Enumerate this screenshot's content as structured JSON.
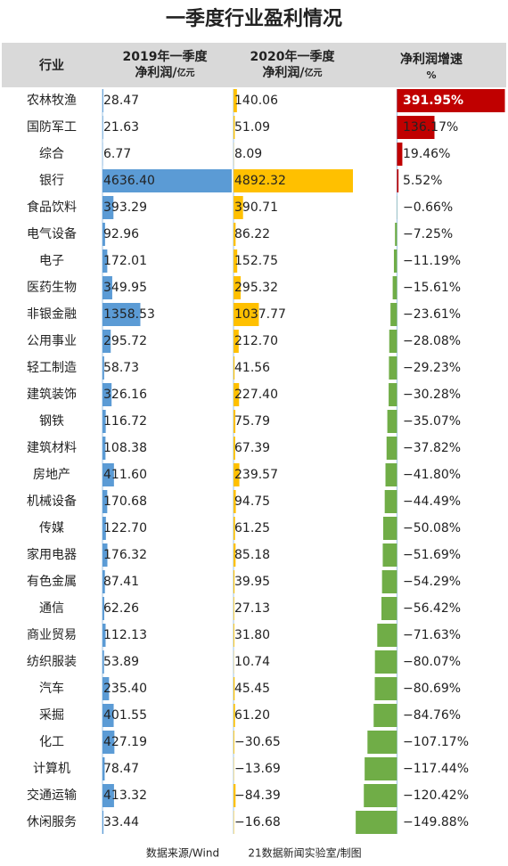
{
  "chart_data": {
    "type": "bar_table",
    "title": "一季度行业盈利情况",
    "category_header": "行业",
    "categories": [
      "农林牧渔",
      "国防军工",
      "综合",
      "银行",
      "食品饮料",
      "电气设备",
      "电子",
      "医药生物",
      "非银金融",
      "公用事业",
      "轻工制造",
      "建筑装饰",
      "钢铁",
      "建筑材料",
      "房地产",
      "机械设备",
      "传媒",
      "家用电器",
      "有色金属",
      "通信",
      "商业贸易",
      "纺织服装",
      "汽车",
      "采掘",
      "化工",
      "计算机",
      "交通运输",
      "休闲服务"
    ],
    "series": [
      {
        "name": [
          "2019年一季度",
          "净利润/",
          "亿元"
        ],
        "color": "#5b9bd5",
        "xlim": [
          0,
          4636.4
        ],
        "values": [
          28.47,
          21.63,
          6.77,
          4636.4,
          393.29,
          92.96,
          172.01,
          349.95,
          1358.53,
          295.72,
          58.73,
          326.16,
          116.72,
          108.38,
          411.6,
          170.68,
          122.7,
          176.32,
          87.41,
          62.26,
          112.13,
          53.89,
          235.4,
          401.55,
          427.19,
          78.47,
          413.32,
          33.44
        ],
        "value_labels": [
          "28.47",
          "21.63",
          "6.77",
          "4636.40",
          "393.29",
          "92.96",
          "172.01",
          "349.95",
          "1358.53",
          "295.72",
          "58.73",
          "326.16",
          "116.72",
          "108.38",
          "411.60",
          "170.68",
          "122.70",
          "176.32",
          "87.41",
          "62.26",
          "112.13",
          "53.89",
          "235.40",
          "401.55",
          "427.19",
          "78.47",
          "413.32",
          "33.44"
        ]
      },
      {
        "name": [
          "2020年一季度",
          "净利润/",
          "亿元"
        ],
        "color": "#ffc000",
        "xlim": [
          0,
          4892.32
        ],
        "values": [
          140.06,
          51.09,
          8.09,
          4892.32,
          390.71,
          86.22,
          152.75,
          295.32,
          1037.77,
          212.7,
          41.56,
          227.4,
          75.79,
          67.39,
          239.57,
          94.75,
          61.25,
          85.18,
          39.95,
          27.13,
          31.8,
          10.74,
          45.45,
          61.2,
          -30.65,
          -13.69,
          -84.39,
          -16.68
        ],
        "value_labels": [
          "140.06",
          "51.09",
          "8.09",
          "4892.32",
          "390.71",
          "86.22",
          "152.75",
          "295.32",
          "1037.77",
          "212.70",
          "41.56",
          "227.40",
          "75.79",
          "67.39",
          "239.57",
          "94.75",
          "61.25",
          "85.18",
          "39.95",
          "27.13",
          "31.80",
          "10.74",
          "45.45",
          "61.20",
          "−30.65",
          "−13.69",
          "−84.39",
          "−16.68"
        ]
      },
      {
        "name": [
          "净利润增速",
          "%"
        ],
        "color": "#c00000",
        "negative_color": "#70ad47",
        "xlim": [
          -160,
          400
        ],
        "values": [
          391.95,
          136.17,
          19.46,
          5.52,
          -0.66,
          -7.25,
          -11.19,
          -15.61,
          -23.61,
          -28.08,
          -29.23,
          -30.28,
          -35.07,
          -37.82,
          -41.8,
          -44.49,
          -50.08,
          -51.69,
          -54.29,
          -56.42,
          -71.63,
          -80.07,
          -80.69,
          -84.76,
          -107.17,
          -117.44,
          -120.42,
          -149.88
        ],
        "value_labels": [
          "391.95%",
          "136.17%",
          "19.46%",
          "5.52%",
          "−0.66%",
          "−7.25%",
          "−11.19%",
          "−15.61%",
          "−23.61%",
          "−28.08%",
          "−29.23%",
          "−30.28%",
          "−35.07%",
          "−37.82%",
          "−41.80%",
          "−44.49%",
          "−50.08%",
          "−51.69%",
          "−54.29%",
          "−56.42%",
          "−71.63%",
          "−80.07%",
          "−80.69%",
          "−84.76%",
          "−107.17%",
          "−117.44%",
          "−120.42%",
          "−149.88%"
        ]
      }
    ],
    "footer": [
      "数据来源/Wind",
      "21数据新闻实验室/制图"
    ]
  }
}
